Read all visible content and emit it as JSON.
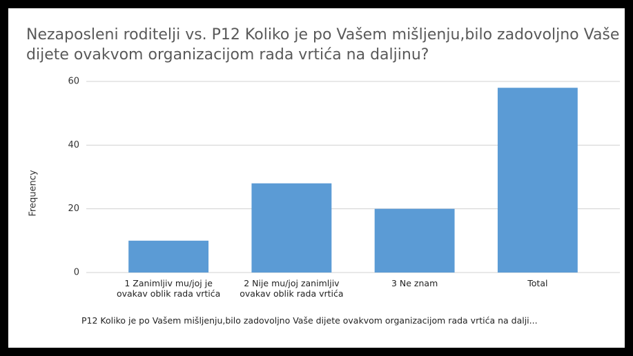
{
  "chart_data": {
    "type": "bar",
    "title": "Nezaposleni roditelji vs. P12 Koliko je po Vašem mišljenju,bilo zadovoljno Vaše dijete ovakvom organizacijom rada vrtića na daljinu?",
    "x_label": "P12 Koliko je po Vašem mišljenju,bilo zadovoljno Vaše dijete ovakvom organizacijom rada vrtića na dalji...",
    "y_label": "Frequency",
    "categories": [
      "1 Zanimljiv mu/joj je ovakav oblik rada vrtića",
      "2 Nije mu/joj zanimljiv ovakav oblik rada vrtića",
      "3 Ne znam",
      "Total"
    ],
    "values": [
      10,
      28,
      20,
      58
    ],
    "color": "#5b9bd5",
    "ylim": [
      0,
      60
    ],
    "yticks": [
      0,
      20,
      40,
      60
    ],
    "grid": true
  }
}
